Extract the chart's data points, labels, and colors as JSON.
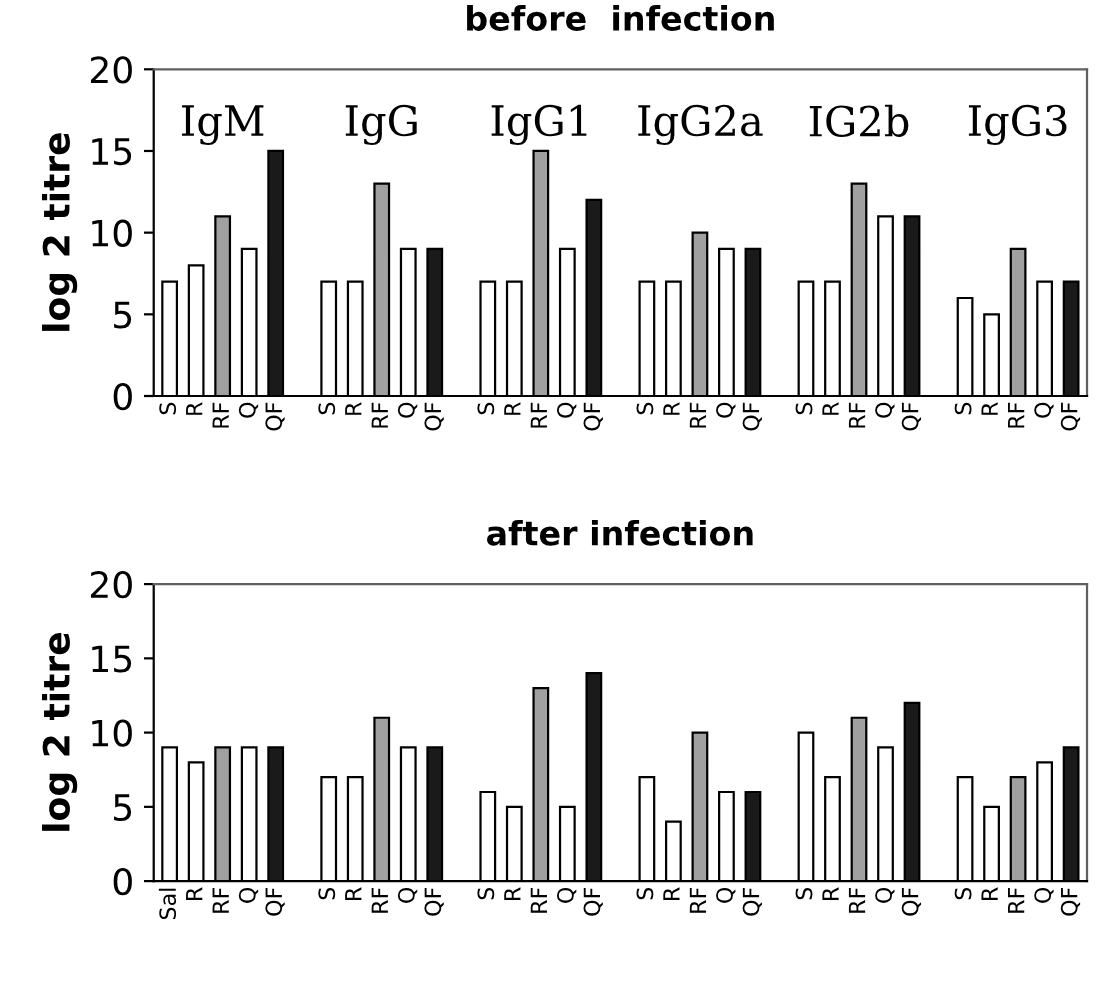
{
  "chart_data": [
    {
      "type": "bar",
      "title": "before  infection",
      "ylabel": "log 2 titre",
      "categories": [
        "S",
        "R",
        "RF",
        "Q",
        "QF",
        null,
        "S",
        "R",
        "RF",
        "Q",
        "QF",
        null,
        "S",
        "R",
        "RF",
        "Q",
        "QF",
        null,
        "S",
        "R",
        "RF",
        "Q",
        "QF",
        null,
        "S",
        "R",
        "RF",
        "Q",
        "QF",
        null,
        "S",
        "R",
        "RF",
        "Q",
        "QF"
      ],
      "values": [
        7,
        8,
        11,
        9,
        15,
        null,
        7,
        7,
        13,
        9,
        9,
        null,
        7,
        7,
        15,
        9,
        12,
        null,
        7,
        7,
        10,
        9,
        9,
        null,
        7,
        7,
        13,
        11,
        11,
        null,
        6,
        5,
        9,
        7,
        7
      ],
      "colors": [
        "#ffffff",
        "#ffffff",
        "#a0a0a0",
        "#ffffff",
        "#1a1a1a",
        null,
        "#ffffff",
        "#ffffff",
        "#a0a0a0",
        "#ffffff",
        "#1a1a1a",
        null,
        "#ffffff",
        "#ffffff",
        "#a0a0a0",
        "#ffffff",
        "#1a1a1a",
        null,
        "#ffffff",
        "#ffffff",
        "#a0a0a0",
        "#ffffff",
        "#1a1a1a",
        null,
        "#ffffff",
        "#ffffff",
        "#a0a0a0",
        "#ffffff",
        "#1a1a1a",
        null,
        "#ffffff",
        "#ffffff",
        "#a0a0a0",
        "#ffffff",
        "#1a1a1a"
      ],
      "annotations": [
        "IgM",
        "IgG",
        "IgG1",
        "IgG2a",
        "IG2b",
        "IgG3"
      ],
      "ylim": [
        0,
        20
      ],
      "yticks": [
        0,
        5,
        10,
        15,
        20
      ],
      "grid": false,
      "legend": false
    },
    {
      "type": "bar",
      "title": "after infection",
      "ylabel": "log 2 titre",
      "categories": [
        "Sal",
        "R",
        "RF",
        "Q",
        "QF",
        null,
        "S",
        "R",
        "RF",
        "Q",
        "QF",
        null,
        "S",
        "R",
        "RF",
        "Q",
        "QF",
        null,
        "S",
        "R",
        "RF",
        "Q",
        "QF",
        null,
        "S",
        "R",
        "RF",
        "Q",
        "QF",
        null,
        "S",
        "R",
        "RF",
        "Q",
        "QF"
      ],
      "values": [
        9,
        8,
        9,
        9,
        9,
        null,
        7,
        7,
        11,
        9,
        9,
        null,
        6,
        5,
        13,
        5,
        14,
        null,
        7,
        4,
        10,
        6,
        6,
        null,
        10,
        7,
        11,
        9,
        12,
        null,
        7,
        5,
        7,
        8,
        9
      ],
      "colors": [
        "#ffffff",
        "#ffffff",
        "#a0a0a0",
        "#ffffff",
        "#1a1a1a",
        null,
        "#ffffff",
        "#ffffff",
        "#a0a0a0",
        "#ffffff",
        "#1a1a1a",
        null,
        "#ffffff",
        "#ffffff",
        "#a0a0a0",
        "#ffffff",
        "#1a1a1a",
        null,
        "#ffffff",
        "#ffffff",
        "#a0a0a0",
        "#ffffff",
        "#1a1a1a",
        null,
        "#ffffff",
        "#ffffff",
        "#a0a0a0",
        "#ffffff",
        "#1a1a1a",
        null,
        "#ffffff",
        "#ffffff",
        "#a0a0a0",
        "#ffffff",
        "#1a1a1a"
      ],
      "ylim": [
        0,
        20
      ],
      "yticks": [
        0,
        5,
        10,
        15,
        20
      ],
      "grid": false,
      "legend": false
    }
  ]
}
